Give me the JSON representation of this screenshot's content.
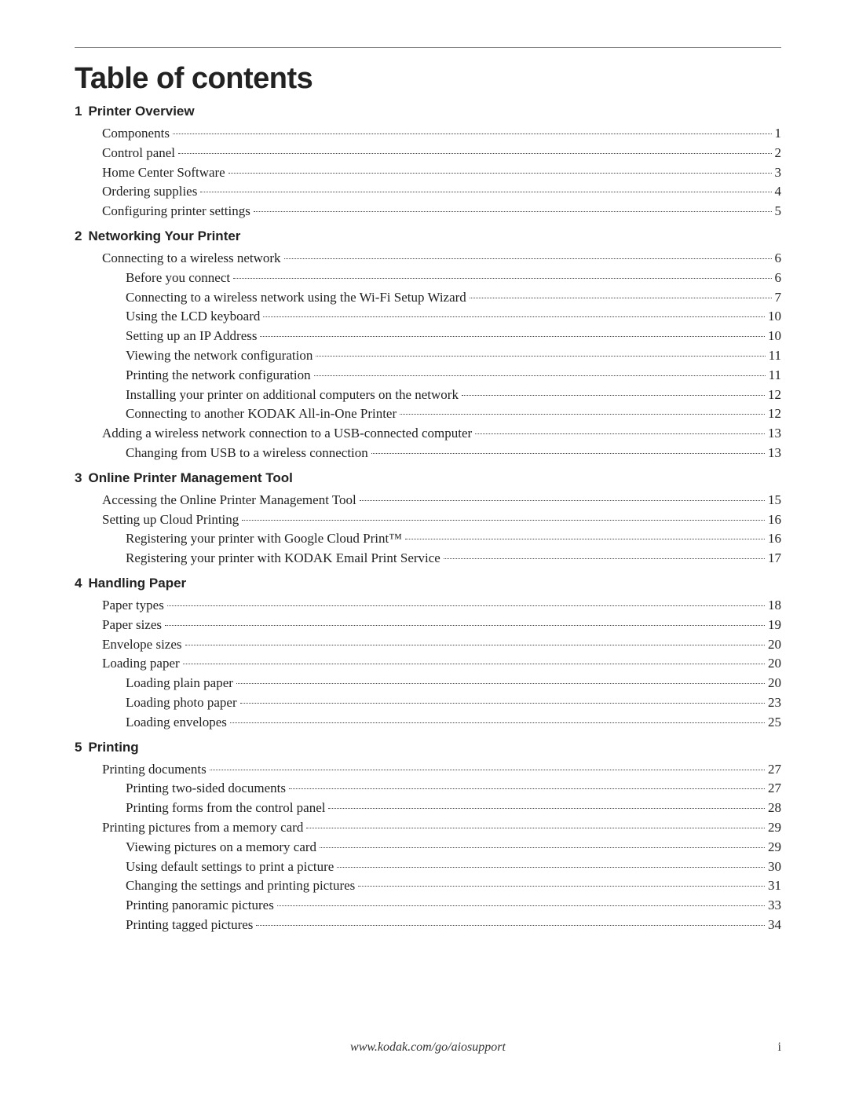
{
  "title": "Table of contents",
  "footer_url": "www.kodak.com/go/aiosupport",
  "page_number": "i",
  "sections": [
    {
      "num": "1",
      "title": "Printer Overview",
      "items": [
        {
          "text": "Components",
          "page": "1",
          "indent": 1
        },
        {
          "text": "Control panel",
          "page": "2",
          "indent": 1
        },
        {
          "text": "Home Center Software",
          "page": "3",
          "indent": 1
        },
        {
          "text": "Ordering supplies",
          "page": "4",
          "indent": 1
        },
        {
          "text": "Configuring printer settings",
          "page": "5",
          "indent": 1
        }
      ]
    },
    {
      "num": "2",
      "title": "Networking Your Printer",
      "items": [
        {
          "text": "Connecting to a wireless network",
          "page": "6",
          "indent": 1
        },
        {
          "text": "Before you connect",
          "page": "6",
          "indent": 2
        },
        {
          "text": "Connecting to a wireless network using the Wi-Fi Setup Wizard",
          "page": "7",
          "indent": 2
        },
        {
          "text": "Using the LCD keyboard",
          "page": "10",
          "indent": 2
        },
        {
          "text": "Setting up an IP Address",
          "page": "10",
          "indent": 2
        },
        {
          "text": "Viewing the network configuration",
          "page": "11",
          "indent": 2
        },
        {
          "text": "Printing the network configuration",
          "page": "11",
          "indent": 2
        },
        {
          "text": "Installing your printer on additional computers on the network",
          "page": "12",
          "indent": 2
        },
        {
          "text": "Connecting to another KODAK All-in-One Printer",
          "page": "12",
          "indent": 2
        },
        {
          "text": "Adding a wireless network connection to a USB-connected computer",
          "page": "13",
          "indent": 1
        },
        {
          "text": "Changing from USB to a wireless connection",
          "page": "13",
          "indent": 2
        }
      ]
    },
    {
      "num": "3",
      "title": "Online Printer Management Tool",
      "items": [
        {
          "text": "Accessing the Online Printer Management Tool",
          "page": "15",
          "indent": 1
        },
        {
          "text": "Setting up Cloud Printing",
          "page": "16",
          "indent": 1
        },
        {
          "text": "Registering your printer with Google Cloud Print™",
          "page": "16",
          "indent": 2
        },
        {
          "text": "Registering your printer with KODAK Email Print Service",
          "page": "17",
          "indent": 2
        }
      ]
    },
    {
      "num": "4",
      "title": "Handling Paper",
      "items": [
        {
          "text": "Paper types",
          "page": "18",
          "indent": 1
        },
        {
          "text": "Paper sizes",
          "page": "19",
          "indent": 1
        },
        {
          "text": "Envelope sizes",
          "page": "20",
          "indent": 1
        },
        {
          "text": "Loading paper",
          "page": "20",
          "indent": 1
        },
        {
          "text": "Loading plain paper",
          "page": "20",
          "indent": 2
        },
        {
          "text": "Loading photo paper",
          "page": "23",
          "indent": 2
        },
        {
          "text": "Loading envelopes",
          "page": "25",
          "indent": 2
        }
      ]
    },
    {
      "num": "5",
      "title": "Printing",
      "items": [
        {
          "text": "Printing documents",
          "page": "27",
          "indent": 1
        },
        {
          "text": "Printing two-sided documents",
          "page": "27",
          "indent": 2
        },
        {
          "text": "Printing forms from the control panel",
          "page": "28",
          "indent": 2
        },
        {
          "text": "Printing pictures from a memory card",
          "page": "29",
          "indent": 1
        },
        {
          "text": "Viewing pictures on a memory card",
          "page": "29",
          "indent": 2
        },
        {
          "text": "Using default settings to print a picture",
          "page": "30",
          "indent": 2
        },
        {
          "text": "Changing the settings and printing pictures",
          "page": "31",
          "indent": 2
        },
        {
          "text": "Printing panoramic pictures",
          "page": "33",
          "indent": 2
        },
        {
          "text": "Printing tagged pictures",
          "page": "34",
          "indent": 2
        }
      ]
    }
  ]
}
